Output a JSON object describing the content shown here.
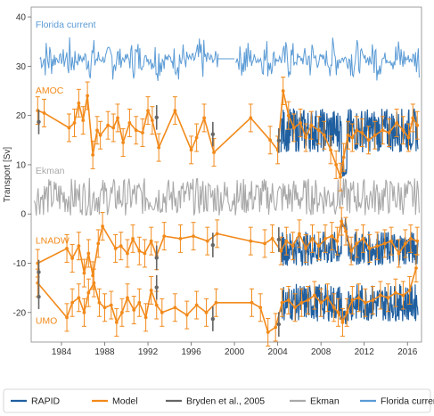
{
  "chart_data": {
    "type": "line",
    "title": "",
    "xlabel": "",
    "ylabel": "Transport [Sv]",
    "xlim": [
      1981.2,
      2017.3
    ],
    "ylim": [
      -26,
      42
    ],
    "x_ticks": [
      1984,
      1988,
      1992,
      1996,
      2000,
      2004,
      2008,
      2012,
      2016
    ],
    "y_ticks": [
      -20,
      -10,
      0,
      10,
      20,
      30,
      40
    ],
    "grid": false,
    "legend_position": "bottom",
    "colors": {
      "rapid": "#1f5fa0",
      "model": "#f28a1b",
      "bryden": "#666666",
      "ekman": "#a9a9a9",
      "florida": "#5b9bd5",
      "label_orange": "#f28a1b",
      "label_blue": "#5b9bd5",
      "label_gray": "#a9a9a9"
    },
    "legend": [
      {
        "name": "RAPID",
        "key": "rapid"
      },
      {
        "name": "Model",
        "key": "model"
      },
      {
        "name": "Bryden et al., 2005",
        "key": "bryden"
      },
      {
        "name": "Ekman",
        "key": "ekman"
      },
      {
        "name": "Florida current",
        "key": "florida"
      }
    ],
    "annotations": [
      {
        "text": "Florida current",
        "x": 1981.6,
        "y": 37.8,
        "color": "label_blue"
      },
      {
        "text": "AMOC",
        "x": 1981.6,
        "y": 24.5,
        "color": "label_orange"
      },
      {
        "text": "Ekman",
        "x": 1981.6,
        "y": 8.2,
        "color": "label_gray"
      },
      {
        "text": "LNADW",
        "x": 1981.6,
        "y": -6.0,
        "color": "label_orange"
      },
      {
        "text": "UMO",
        "x": 1981.6,
        "y": -22.3,
        "color": "label_orange"
      }
    ],
    "florida": {
      "x_start": 1982.0,
      "x_end": 2017.1,
      "base": 31.5,
      "amp": 4.5,
      "gap": [
        1998.5,
        2000.0
      ]
    },
    "ekman": {
      "x_start": 1981.5,
      "x_end": 2017.1,
      "base": 3.5,
      "amp": 3.8
    },
    "model_series": [
      {
        "name": "AMOC",
        "x": [
          1981.8,
          1982.4,
          1984.7,
          1985.2,
          1985.6,
          1986.0,
          1986.4,
          1986.9,
          1987.3,
          1987.6,
          1988.3,
          1988.8,
          1989.2,
          1989.7,
          1990.3,
          1990.9,
          1991.5,
          1992.0,
          1992.4,
          1993.0,
          1994.5,
          1996.0,
          1996.5,
          1997.2,
          1998.1,
          2001.5,
          2003.3,
          2004.0,
          2004.5,
          2005.0,
          2005.5,
          2006.1,
          2006.6,
          2007.1,
          2007.8,
          2008.3,
          2008.9,
          2009.4,
          2009.8,
          2010.1,
          2010.5,
          2010.9,
          2011.3,
          2011.8,
          2012.4,
          2013.0,
          2013.7,
          2014.3,
          2015.0,
          2015.6,
          2016.1,
          2016.5,
          2016.9
        ],
        "y": [
          21.0,
          20.5,
          17.5,
          18.5,
          22.5,
          19.0,
          24.0,
          12.0,
          17.0,
          16.0,
          18.0,
          17.5,
          19.5,
          14.5,
          18.5,
          17.0,
          16.5,
          21.0,
          19.0,
          13.5,
          21.0,
          13.0,
          15.5,
          19.5,
          12.5,
          19.5,
          15.0,
          13.0,
          25.0,
          20.0,
          17.5,
          18.5,
          15.5,
          18.0,
          17.0,
          16.0,
          13.0,
          10.0,
          7.5,
          11.5,
          16.0,
          15.5,
          17.0,
          16.5,
          15.0,
          16.0,
          17.0,
          16.5,
          18.5,
          17.0,
          15.5,
          19.5,
          18.0
        ]
      },
      {
        "name": "LNADW",
        "x": [
          1981.8,
          1984.5,
          1985.0,
          1985.6,
          1986.1,
          1986.5,
          1986.9,
          1987.4,
          1987.8,
          1989.0,
          1989.5,
          1990.1,
          1990.6,
          1991.2,
          1991.7,
          1992.3,
          1992.8,
          1993.5,
          1995.0,
          1996.2,
          1997.5,
          1998.4,
          2001.5,
          2002.8,
          2003.5,
          2004.3,
          2004.8,
          2005.4,
          2006.0,
          2006.6,
          2007.2,
          2007.8,
          2008.4,
          2009.0,
          2009.5,
          2009.9,
          2010.3,
          2010.8,
          2011.3,
          2011.9,
          2012.5,
          2013.2,
          2013.9,
          2014.5,
          2015.2,
          2015.8,
          2016.3,
          2016.9
        ],
        "y": [
          -10.0,
          -7.0,
          -9.0,
          -6.5,
          -12.0,
          -8.0,
          -12.5,
          -6.0,
          -2.5,
          -7.0,
          -6.5,
          -8.0,
          -5.0,
          -7.5,
          -8.0,
          -5.5,
          -8.5,
          -4.5,
          -5.0,
          -4.5,
          -5.5,
          -4.0,
          -5.5,
          -6.0,
          -5.0,
          -7.5,
          -5.5,
          -6.5,
          -4.0,
          -7.0,
          -5.0,
          -6.5,
          -5.0,
          -4.5,
          -5.5,
          -1.5,
          -3.5,
          -7.5,
          -6.0,
          -5.0,
          -7.0,
          -6.5,
          -6.0,
          -5.5,
          -8.0,
          -6.0,
          -5.0,
          -5.5
        ]
      },
      {
        "name": "UMO",
        "x": [
          1981.8,
          1984.5,
          1985.0,
          1985.6,
          1986.1,
          1986.5,
          1987.0,
          1987.5,
          1988.0,
          1988.6,
          1989.1,
          1989.6,
          1990.1,
          1990.7,
          1991.2,
          1991.8,
          1992.3,
          1992.8,
          1993.3,
          1994.5,
          1995.6,
          1996.5,
          1997.4,
          1998.3,
          2001.6,
          2002.4,
          2003.1,
          2003.8,
          2004.4,
          2005.0,
          2005.6,
          2006.2,
          2006.8,
          2007.4,
          2008.0,
          2008.6,
          2009.2,
          2009.6,
          2010.0,
          2010.4,
          2010.9,
          2011.5,
          2012.1,
          2012.8,
          2013.5,
          2014.2,
          2014.9,
          2015.6,
          2016.2,
          2016.8
        ],
        "y": [
          -14.0,
          -21.0,
          -18.0,
          -17.0,
          -20.0,
          -16.0,
          -14.0,
          -18.0,
          -19.0,
          -18.5,
          -22.0,
          -20.0,
          -17.0,
          -19.5,
          -18.0,
          -21.0,
          -15.5,
          -18.5,
          -20.0,
          -19.0,
          -20.5,
          -18.5,
          -20.0,
          -18.0,
          -18.0,
          -19.0,
          -24.0,
          -23.0,
          -18.0,
          -17.5,
          -19.0,
          -18.0,
          -17.5,
          -16.5,
          -18.0,
          -17.0,
          -19.0,
          -20.0,
          -22.0,
          -20.0,
          -17.5,
          -17.0,
          -18.0,
          -17.5,
          -16.5,
          -17.0,
          -16.0,
          -16.5,
          -15.5,
          -11.0
        ]
      }
    ],
    "bryden": [
      {
        "x": 1981.9,
        "y": 18.7
      },
      {
        "x": 1992.8,
        "y": 19.6
      },
      {
        "x": 1998.0,
        "y": 16.2
      },
      {
        "x": 2004.1,
        "y": 14.9
      },
      {
        "x": 1981.9,
        "y": -11.8
      },
      {
        "x": 1992.8,
        "y": -8.9
      },
      {
        "x": 1998.0,
        "y": -6.3
      },
      {
        "x": 2004.1,
        "y": -5.2
      },
      {
        "x": 1981.9,
        "y": -16.8
      },
      {
        "x": 1992.8,
        "y": -14.9
      },
      {
        "x": 1998.0,
        "y": -21.3
      },
      {
        "x": 2004.1,
        "y": -22.4
      }
    ],
    "rapid": [
      {
        "name": "AMOC",
        "x_start": 2004.3,
        "x_end": 2017.0,
        "base": 17.0,
        "amp": 4.5,
        "dip": [
          2009.9,
          2010.4,
          -8.0
        ]
      },
      {
        "name": "LNADW",
        "x_start": 2004.3,
        "x_end": 2017.0,
        "base": -7.0,
        "amp": 3.5,
        "dip": [
          2009.9,
          2010.4,
          5.0
        ]
      },
      {
        "name": "UMO",
        "x_start": 2004.3,
        "x_end": 2017.0,
        "base": -18.0,
        "amp": 3.8,
        "dip": [
          2009.9,
          2010.4,
          -3.0
        ]
      }
    ]
  }
}
